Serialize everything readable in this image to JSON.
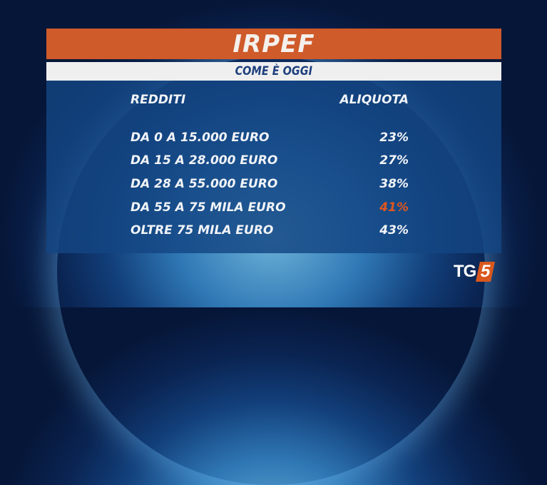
{
  "header": {
    "title": "IRPEF",
    "subtitle": "COME È OGGI"
  },
  "table": {
    "columns": [
      "REDDITI",
      "ALIQUOTA"
    ],
    "rows": [
      {
        "range": "DA 0 A 15.000 EURO",
        "rate": "23%",
        "highlight": false
      },
      {
        "range": "DA 15 A 28.000 EURO",
        "rate": "27%",
        "highlight": false
      },
      {
        "range": "DA 28 A 55.000 EURO",
        "rate": "38%",
        "highlight": false
      },
      {
        "range": "DA 55 A 75 MILA EURO",
        "rate": "41%",
        "highlight": true
      },
      {
        "range": "OLTRE 75 MILA EURO",
        "rate": "43%",
        "highlight": false
      }
    ]
  },
  "logo": {
    "text_tg": "TG",
    "text_num": "5"
  },
  "colors": {
    "title_bar": "#cf5a2a",
    "highlight": "#e0561f",
    "subtitle_text": "#1d3f7c"
  }
}
